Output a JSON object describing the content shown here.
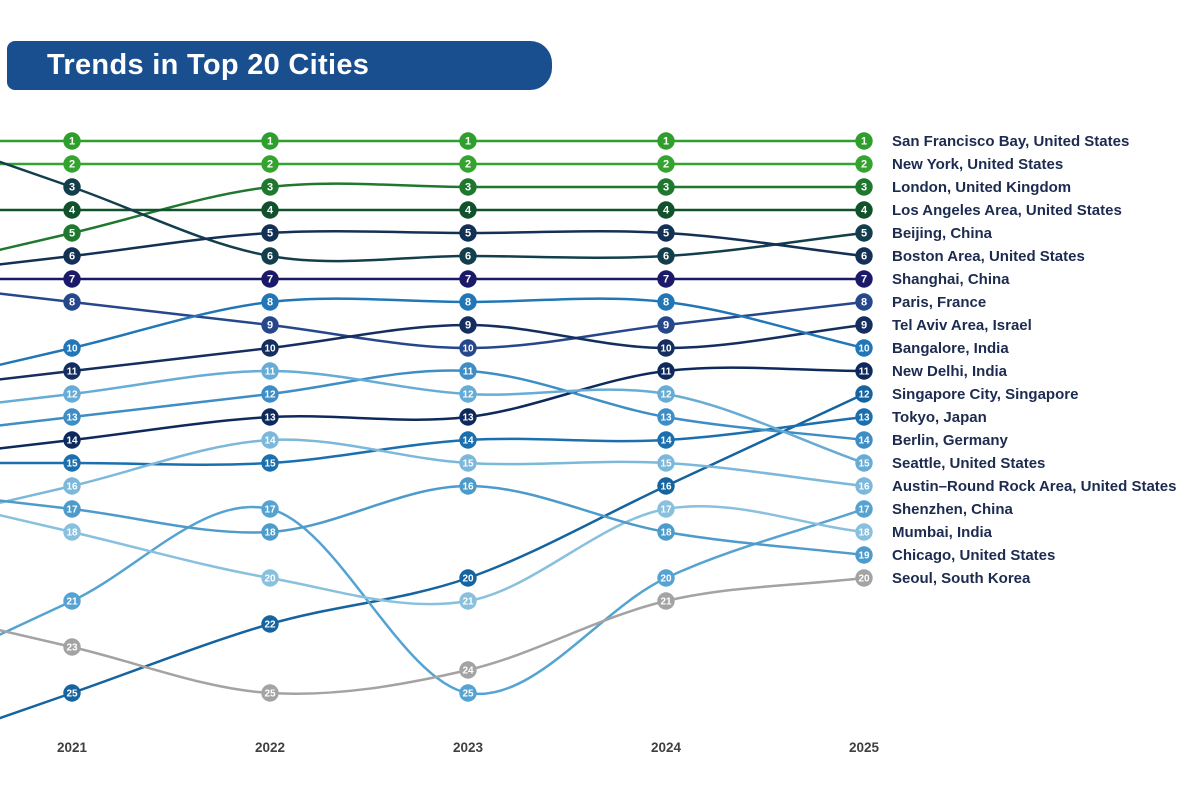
{
  "header": {
    "title": "Trends in Top 20 Cities",
    "bar_color": "#1a4f8f"
  },
  "chart_data": {
    "type": "bump",
    "title": "Trends in Top 20 Cities",
    "x": [
      2021,
      2022,
      2023,
      2024,
      2025
    ],
    "x_tick_labels": [
      "2021",
      "2022",
      "2023",
      "2024",
      "2025"
    ],
    "y_meaning": "city rank (1 = best), lower is better; only 2025 top-20 cities shown",
    "y_range_visible": [
      1,
      25
    ],
    "grid": false,
    "legend_position": "right-edge city labels aligned to 2025 rank",
    "series": [
      {
        "name": "San Francisco Bay, United States",
        "color": "#2f9e2c",
        "ranks": [
          1,
          1,
          1,
          1,
          1
        ]
      },
      {
        "name": "New York, United States",
        "color": "#35a32f",
        "ranks": [
          2,
          2,
          2,
          2,
          2
        ]
      },
      {
        "name": "London, United Kingdom",
        "color": "#20782f",
        "ranks": [
          5,
          3,
          3,
          3,
          3
        ]
      },
      {
        "name": "Los Angeles Area, United States",
        "color": "#11522c",
        "ranks": [
          4,
          4,
          4,
          4,
          4
        ]
      },
      {
        "name": "Beijing, China",
        "color": "#123f4b",
        "ranks": [
          3,
          6,
          6,
          6,
          5
        ]
      },
      {
        "name": "Boston Area, United States",
        "color": "#133055",
        "ranks": [
          6,
          5,
          5,
          5,
          6
        ]
      },
      {
        "name": "Shanghai, China",
        "color": "#1b1a68",
        "ranks": [
          7,
          7,
          7,
          7,
          7
        ]
      },
      {
        "name": "Paris, France",
        "color": "#26478c",
        "ranks": [
          8,
          9,
          10,
          9,
          8
        ]
      },
      {
        "name": "Tel Aviv Area, Israel",
        "color": "#142e60",
        "ranks": [
          11,
          10,
          9,
          10,
          9
        ]
      },
      {
        "name": "Bangalore, India",
        "color": "#2076b6",
        "ranks": [
          10,
          8,
          8,
          8,
          10
        ]
      },
      {
        "name": "New Delhi, India",
        "color": "#0e2a5c",
        "ranks": [
          14,
          13,
          13,
          11,
          11
        ]
      },
      {
        "name": "Singapore City, Singapore",
        "color": "#15639f",
        "ranks": [
          25,
          22,
          20,
          16,
          12
        ]
      },
      {
        "name": "Tokyo, Japan",
        "color": "#1b6fae",
        "ranks": [
          15,
          15,
          14,
          14,
          13
        ]
      },
      {
        "name": "Berlin, Germany",
        "color": "#3e8ec5",
        "ranks": [
          13,
          12,
          11,
          13,
          14
        ]
      },
      {
        "name": "Seattle, United States",
        "color": "#66acd5",
        "ranks": [
          12,
          11,
          12,
          12,
          15
        ]
      },
      {
        "name": "Austin–Round Rock Area, United States",
        "color": "#7cb8da",
        "ranks": [
          16,
          14,
          15,
          15,
          16
        ]
      },
      {
        "name": "Shenzhen, China",
        "color": "#55a3d2",
        "ranks": [
          21,
          17,
          25,
          20,
          17
        ]
      },
      {
        "name": "Mumbai, India",
        "color": "#88c0de",
        "ranks": [
          18,
          20,
          21,
          17,
          18
        ]
      },
      {
        "name": "Chicago, United States",
        "color": "#4c9bcb",
        "ranks": [
          17,
          18,
          16,
          18,
          19
        ]
      },
      {
        "name": "Seoul, South Korea",
        "color": "#a3a3a3",
        "ranks": [
          23,
          25,
          24,
          21,
          20
        ]
      }
    ]
  }
}
